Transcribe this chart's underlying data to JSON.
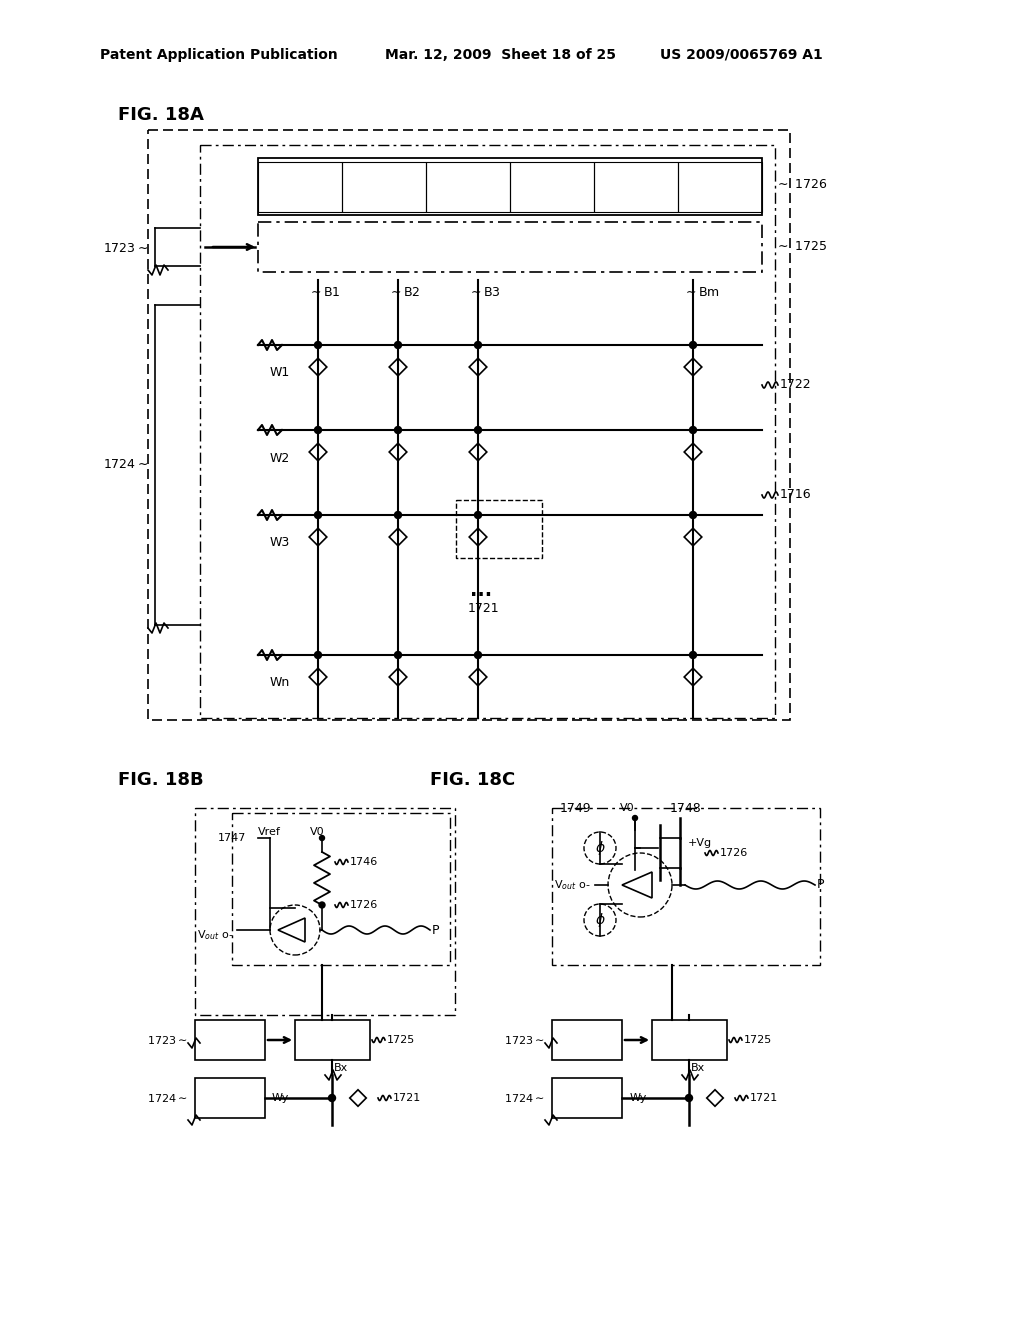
{
  "bg_color": "#ffffff",
  "line_color": "#000000",
  "header_left": "Patent Application Publication",
  "header_mid": "Mar. 12, 2009  Sheet 18 of 25",
  "header_right": "US 2009/0065769 A1",
  "fig18a_label": "FIG. 18A",
  "fig18b_label": "FIG. 18B",
  "fig18c_label": "FIG. 18C"
}
